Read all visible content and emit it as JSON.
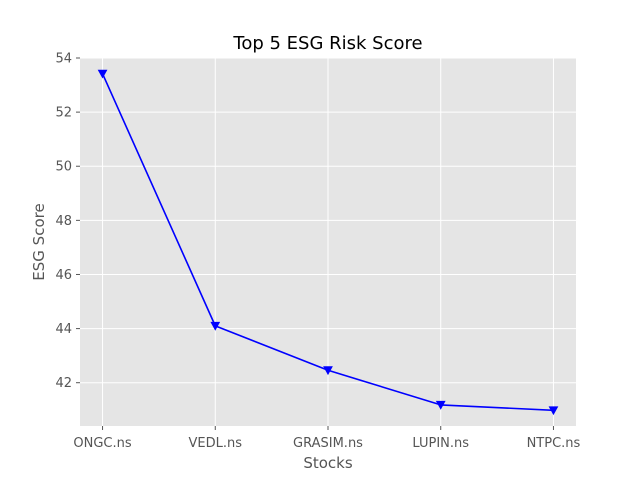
{
  "chart_data": {
    "type": "line",
    "title": "Top 5 ESG Risk Score",
    "xlabel": "Stocks",
    "ylabel": "ESG Score",
    "categories": [
      "ONGC.ns",
      "VEDL.ns",
      "GRASIM.ns",
      "LUPIN.ns",
      "NTPC.ns"
    ],
    "series": [
      {
        "values": [
          53.42,
          44.1,
          42.46,
          41.18,
          40.98
        ],
        "color": "#0000ff",
        "marker": "triangle-down"
      }
    ],
    "ylim": [
      40.4,
      54.0
    ],
    "yticks": [
      42,
      44,
      46,
      48,
      50,
      52,
      54
    ],
    "grid": true,
    "legend": "none",
    "colors": {
      "plot_bg": "#e5e5e5",
      "grid": "#ffffff",
      "tick_text": "#555555",
      "title_text": "#000000",
      "label_text": "#555555"
    }
  }
}
